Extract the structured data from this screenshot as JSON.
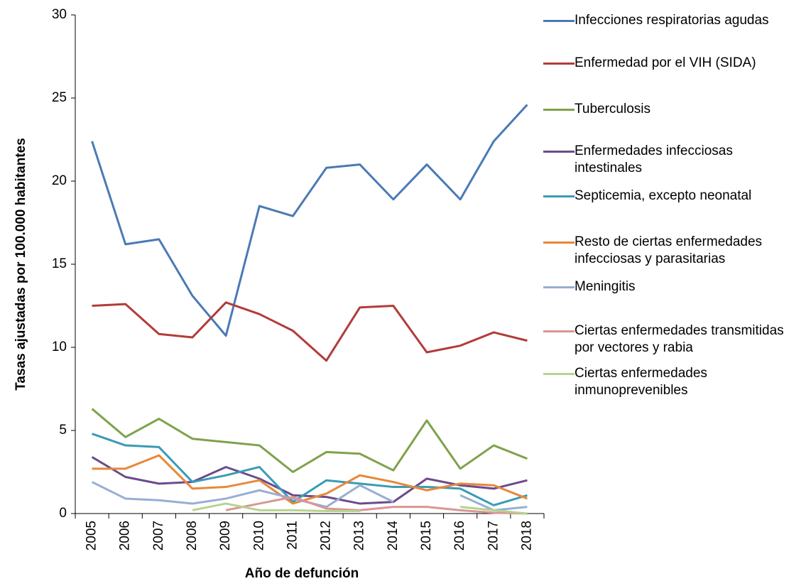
{
  "chart_data": {
    "type": "line",
    "xlabel": "Año de defunción",
    "ylabel": "Tasas ajustadas por 100.000 habitantes",
    "categories": [
      "2005",
      "2006",
      "2007",
      "2008",
      "2009",
      "2010",
      "2011",
      "2012",
      "2013",
      "2014",
      "2015",
      "2016",
      "2017",
      "2018"
    ],
    "ylim": [
      0,
      30
    ],
    "yticks": [
      0,
      5,
      10,
      15,
      20,
      25,
      30
    ],
    "legend": "right",
    "series": [
      {
        "name": "Infecciones respiratorias agudas",
        "color": "#4a7ab5",
        "values": [
          22.4,
          16.2,
          16.5,
          13.1,
          10.7,
          18.5,
          17.9,
          20.8,
          21.0,
          18.9,
          21.0,
          18.9,
          22.4,
          24.6
        ]
      },
      {
        "name": "Enfermedad por el VIH (SIDA)",
        "color": "#b23c3a",
        "values": [
          12.5,
          12.6,
          10.8,
          10.6,
          12.7,
          12.0,
          11.0,
          9.2,
          12.4,
          12.5,
          9.7,
          10.1,
          10.9,
          10.4
        ]
      },
      {
        "name": "Tuberculosis",
        "color": "#7fa24a",
        "values": [
          6.3,
          4.6,
          5.7,
          4.5,
          4.3,
          4.1,
          2.5,
          3.7,
          3.6,
          2.6,
          5.6,
          2.7,
          4.1,
          3.3
        ]
      },
      {
        "name": "Enfermedades infecciosas intestinales",
        "color": "#6b4b8c",
        "values": [
          3.4,
          2.2,
          1.8,
          1.9,
          2.8,
          2.1,
          1.1,
          1.0,
          0.6,
          0.7,
          2.1,
          1.7,
          1.5,
          2.0
        ]
      },
      {
        "name": "Septicemia, excepto neonatal",
        "color": "#3a9bb5",
        "values": [
          4.8,
          4.1,
          4.0,
          1.9,
          2.3,
          2.8,
          0.7,
          2.0,
          1.8,
          1.6,
          1.6,
          1.5,
          0.5,
          1.1
        ]
      },
      {
        "name": "Resto de ciertas enfermedades infecciosas y parasitarias",
        "color": "#e8883a",
        "values": [
          2.7,
          2.7,
          3.5,
          1.5,
          1.6,
          2.0,
          0.6,
          1.2,
          2.3,
          1.9,
          1.4,
          1.8,
          1.7,
          0.9
        ]
      },
      {
        "name": "Meningitis",
        "color": "#98aed4",
        "values": [
          1.9,
          0.9,
          0.8,
          0.6,
          0.9,
          1.4,
          0.9,
          0.4,
          1.7,
          0.7,
          null,
          1.1,
          0.2,
          0.4
        ]
      },
      {
        "name": "Ciertas enfermedades transmitidas por vectores y rabia",
        "color": "#d99694",
        "values": [
          null,
          null,
          null,
          null,
          0.2,
          0.6,
          1.0,
          0.3,
          0.2,
          0.4,
          0.4,
          0.2,
          0.05,
          0.0
        ]
      },
      {
        "name": "Ciertas enfermedades inmunoprevenibles",
        "color": "#b6d38f",
        "values": [
          null,
          null,
          null,
          0.2,
          0.6,
          0.2,
          0.2,
          0.15,
          0.15,
          null,
          null,
          0.4,
          0.2,
          0.0
        ]
      }
    ]
  }
}
